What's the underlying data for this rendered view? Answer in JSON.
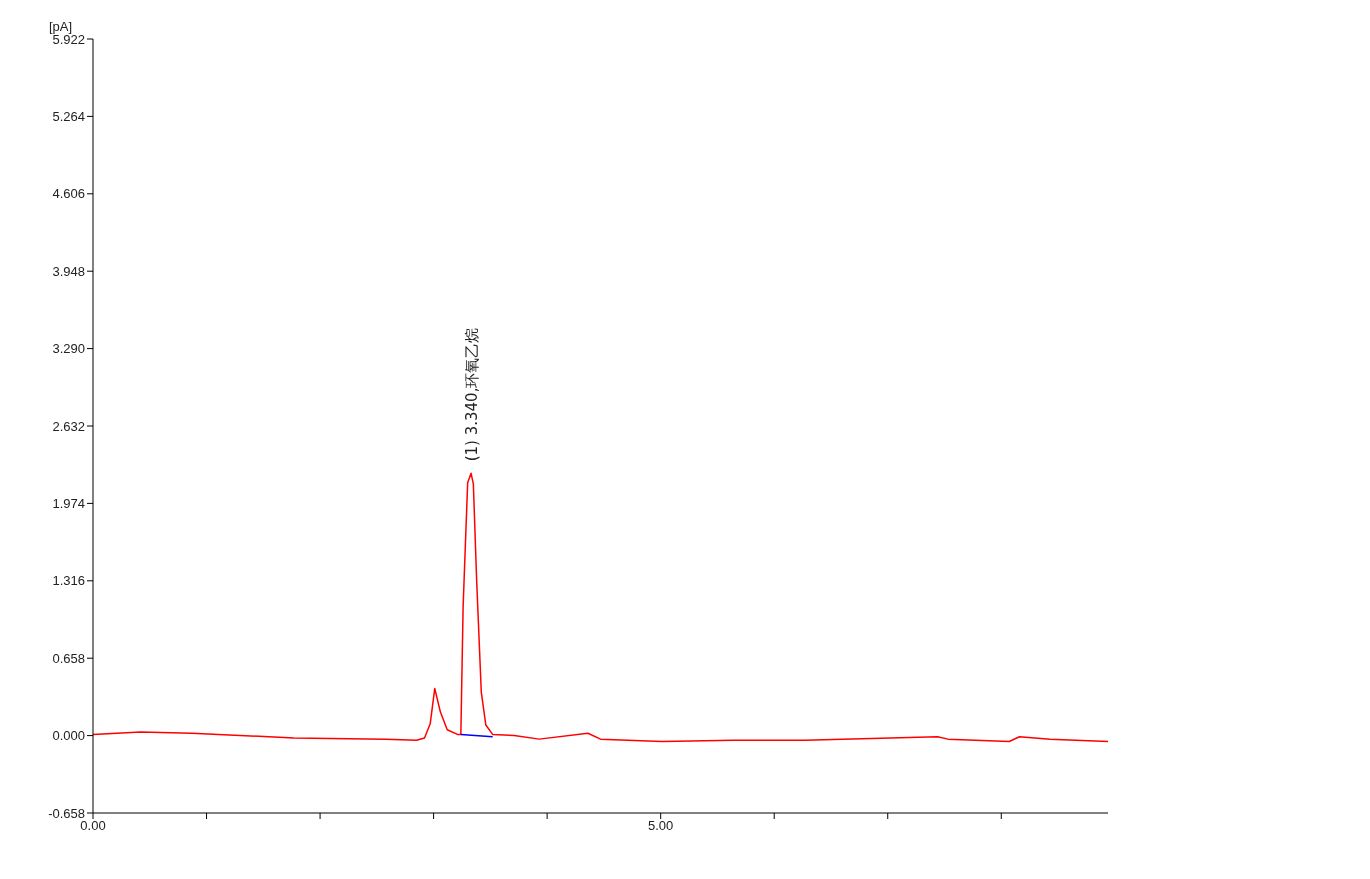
{
  "chart_data": {
    "type": "line",
    "ylabel": "[pA]",
    "xlim": [
      0,
      8.94
    ],
    "ylim": [
      -0.658,
      5.922
    ],
    "xticks": [
      {
        "value": 0,
        "label": "0.00"
      },
      {
        "value": 1,
        "label": null
      },
      {
        "value": 2,
        "label": null
      },
      {
        "value": 3,
        "label": null
      },
      {
        "value": 4,
        "label": null
      },
      {
        "value": 5,
        "label": "5.00"
      },
      {
        "value": 6,
        "label": null
      },
      {
        "value": 7,
        "label": null
      },
      {
        "value": 8,
        "label": null
      }
    ],
    "yticks": [
      -0.658,
      {
        "value": 0,
        "label": "0.000"
      },
      0.658,
      1.316,
      1.974,
      2.632,
      {
        "value": 3.29,
        "label": "3.290"
      },
      3.948,
      4.606,
      5.264,
      5.922
    ],
    "series": [
      {
        "color": "#ff0000",
        "x": [
          0,
          0.42,
          0.87,
          1.77,
          2.58,
          2.85,
          2.92,
          2.97,
          3.01,
          3.06,
          3.12,
          3.21,
          3.24,
          3.26,
          3.3,
          3.33,
          3.35,
          3.38,
          3.42,
          3.46,
          3.52,
          3.71,
          3.93,
          4.36,
          4.47,
          5.01,
          5.64,
          6.27,
          7.44,
          7.53,
          8.07,
          8.16,
          8.43,
          8.94
        ],
        "values": [
          0.01,
          0.03,
          0.02,
          -0.02,
          -0.03,
          -0.04,
          -0.02,
          0.1,
          0.4,
          0.2,
          0.05,
          0.01,
          0.01,
          1.1,
          2.15,
          2.23,
          2.14,
          1.3,
          0.37,
          0.09,
          0.01,
          0,
          -0.03,
          0.02,
          -0.03,
          -0.05,
          -0.04,
          -0.04,
          -0.01,
          -0.03,
          -0.05,
          -0.01,
          -0.03,
          -0.05
        ]
      },
      {
        "color": "#0000ff",
        "x": [
          3.24,
          3.52
        ],
        "values": [
          0.01,
          -0.01
        ]
      }
    ],
    "annotations": [
      {
        "text": "(1) 3.340,环氧乙烷",
        "x": 3.34,
        "y": 2.23
      }
    ]
  }
}
